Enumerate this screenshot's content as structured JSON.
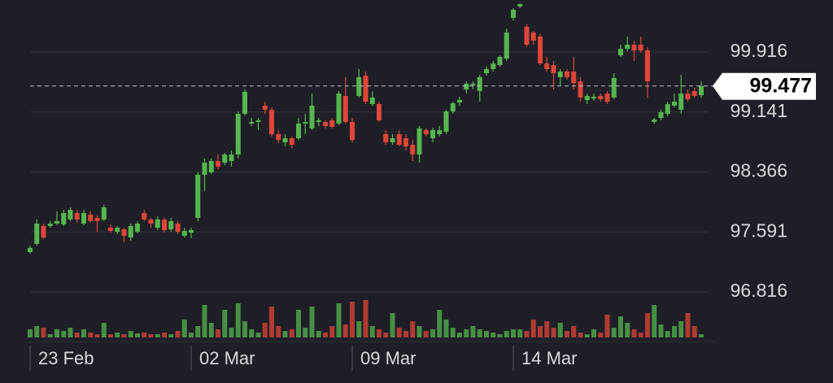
{
  "chart_data": {
    "type": "candlestick",
    "categories": [
      "23 Feb",
      null,
      null,
      null,
      null,
      null,
      null,
      null,
      null,
      null,
      null,
      null,
      null,
      null,
      null,
      null,
      null,
      null,
      null,
      null,
      null,
      null,
      null,
      null,
      "02 Mar",
      null,
      null,
      null,
      null,
      null,
      null,
      null,
      null,
      null,
      null,
      null,
      null,
      null,
      null,
      null,
      null,
      null,
      null,
      null,
      null,
      null,
      null,
      null,
      "09 Mar",
      null,
      null,
      null,
      null,
      null,
      null,
      null,
      null,
      null,
      null,
      null,
      null,
      null,
      null,
      null,
      null,
      null,
      null,
      null,
      null,
      null,
      null,
      null,
      "14 Mar",
      null,
      null,
      null,
      null,
      null,
      null,
      null,
      null,
      null,
      null,
      null,
      null,
      null,
      null,
      null,
      null,
      null,
      null,
      null,
      null,
      null,
      null,
      null,
      null,
      null,
      null,
      null,
      null
    ],
    "open": [
      97.331,
      97.436,
      97.668,
      97.668,
      97.699,
      97.689,
      97.752,
      97.836,
      97.699,
      97.815,
      97.773,
      97.752,
      97.646,
      97.594,
      97.625,
      97.52,
      97.594,
      97.836,
      97.752,
      97.646,
      97.752,
      97.625,
      97.699,
      97.541,
      97.583,
      97.773,
      98.33,
      98.361,
      98.508,
      98.487,
      98.508,
      98.592,
      99.118,
      98.992,
      99.013,
      99.223,
      99.17,
      98.855,
      98.75,
      98.802,
      98.802,
      98.992,
      98.929,
      99.013,
      99.013,
      99.034,
      98.992,
      99.349,
      99.013,
      99.349,
      99.612,
      99.244,
      99.244,
      98.855,
      98.75,
      98.855,
      98.802,
      98.718,
      98.592,
      98.908,
      98.802,
      98.855,
      98.887,
      99.149,
      99.265,
      99.433,
      99.486,
      99.412,
      99.643,
      99.696,
      99.748,
      99.832,
      100.358,
      100.505,
      100.242,
      100.169,
      100.116,
      99.769,
      99.748,
      99.591,
      99.664,
      99.664,
      99.538,
      99.296,
      99.317,
      99.349,
      99.38,
      99.328,
      99.874,
      99.958,
      100.011,
      100.011,
      99.937,
      99.013,
      99.065,
      99.118,
      99.223,
      99.17,
      99.38,
      99.412,
      99.359
    ],
    "high": [
      97.415,
      97.752,
      97.699,
      97.731,
      97.857,
      97.878,
      97.909,
      97.878,
      97.878,
      97.857,
      97.804,
      97.941,
      97.689,
      97.668,
      97.646,
      97.699,
      97.731,
      97.878,
      97.773,
      97.794,
      97.773,
      97.773,
      97.731,
      97.646,
      97.646,
      98.361,
      98.54,
      98.54,
      98.592,
      98.613,
      98.645,
      99.149,
      99.433,
      99.065,
      99.065,
      99.275,
      99.202,
      98.908,
      98.855,
      98.824,
      99.065,
      99.118,
      99.38,
      99.065,
      99.034,
      99.065,
      99.412,
      99.591,
      99.065,
      99.696,
      99.664,
      99.412,
      99.275,
      98.908,
      98.855,
      98.908,
      98.855,
      98.781,
      98.96,
      98.929,
      98.939,
      98.96,
      99.17,
      99.275,
      99.338,
      99.538,
      99.538,
      99.622,
      99.727,
      99.801,
      99.874,
      100.221,
      100.484,
      100.547,
      100.274,
      100.19,
      100.148,
      99.853,
      99.801,
      99.696,
      99.696,
      99.853,
      99.591,
      99.38,
      99.38,
      99.38,
      99.412,
      99.643,
      100.011,
      100.116,
      100.064,
      100.116,
      99.979,
      99.065,
      99.17,
      99.275,
      99.38,
      99.622,
      99.433,
      99.454,
      99.538
    ],
    "low": [
      97.31,
      97.415,
      97.499,
      97.646,
      97.678,
      97.668,
      97.731,
      97.71,
      97.678,
      97.71,
      97.594,
      97.731,
      97.583,
      97.563,
      97.457,
      97.478,
      97.573,
      97.731,
      97.646,
      97.615,
      97.583,
      97.594,
      97.563,
      97.52,
      97.51,
      97.731,
      98.119,
      98.34,
      98.403,
      98.456,
      98.435,
      98.54,
      99.097,
      98.96,
      98.908,
      99.118,
      98.824,
      98.739,
      98.697,
      98.676,
      98.781,
      98.855,
      98.908,
      98.96,
      98.929,
      98.929,
      98.971,
      98.992,
      98.75,
      99.328,
      99.244,
      99.223,
      99.013,
      98.718,
      98.718,
      98.697,
      98.645,
      98.508,
      98.487,
      98.824,
      98.75,
      98.824,
      98.855,
      99.118,
      99.223,
      99.38,
      99.433,
      99.275,
      99.612,
      99.664,
      99.727,
      99.801,
      100.326,
      100.484,
      99.979,
      100.011,
      99.748,
      99.664,
      99.433,
      99.486,
      99.559,
      99.433,
      99.275,
      99.244,
      99.286,
      99.275,
      99.244,
      99.307,
      99.853,
      99.927,
      99.801,
      99.906,
      99.328,
      98.992,
      99.034,
      99.086,
      99.202,
      99.118,
      99.275,
      99.328,
      99.328
    ],
    "close": [
      97.384,
      97.699,
      97.52,
      97.699,
      97.731,
      97.836,
      97.878,
      97.752,
      97.836,
      97.731,
      97.731,
      97.909,
      97.604,
      97.646,
      97.541,
      97.668,
      97.699,
      97.752,
      97.699,
      97.752,
      97.615,
      97.731,
      97.594,
      97.604,
      97.615,
      98.33,
      98.487,
      98.508,
      98.435,
      98.592,
      98.592,
      99.118,
      99.402,
      99.013,
      99.034,
      99.17,
      98.855,
      98.781,
      98.802,
      98.718,
      98.992,
      99.013,
      99.223,
      99.034,
      98.96,
      98.95,
      99.38,
      99.013,
      98.781,
      99.591,
      99.275,
      99.328,
      99.034,
      98.75,
      98.802,
      98.718,
      98.697,
      98.592,
      98.929,
      98.855,
      98.908,
      98.908,
      99.149,
      99.254,
      99.296,
      99.507,
      99.507,
      99.591,
      99.696,
      99.769,
      99.853,
      100.169,
      100.463,
      100.536,
      100.011,
      100.064,
      99.769,
      99.696,
      99.643,
      99.664,
      99.591,
      99.517,
      99.328,
      99.349,
      99.338,
      99.307,
      99.275,
      99.58,
      99.958,
      100.011,
      99.937,
      99.937,
      99.538,
      99.044,
      99.139,
      99.244,
      99.275,
      99.38,
      99.307,
      99.349,
      99.477
    ],
    "volume": [
      10,
      14,
      12,
      4,
      10,
      8,
      12,
      6,
      10,
      6,
      4,
      18,
      4,
      6,
      4,
      8,
      5,
      6,
      4,
      4,
      6,
      4,
      8,
      22,
      6,
      14,
      40,
      18,
      10,
      34,
      12,
      42,
      20,
      10,
      6,
      18,
      38,
      14,
      8,
      10,
      34,
      12,
      38,
      8,
      6,
      14,
      42,
      16,
      44,
      20,
      46,
      14,
      10,
      6,
      30,
      12,
      8,
      20,
      14,
      8,
      10,
      34,
      22,
      12,
      6,
      10,
      14,
      10,
      8,
      6,
      4,
      8,
      10,
      10,
      8,
      22,
      14,
      20,
      12,
      18,
      8,
      14,
      6,
      4,
      10,
      6,
      28,
      12,
      26,
      18,
      10,
      6,
      30,
      40,
      16,
      8,
      14,
      20,
      30,
      14,
      4
    ],
    "volume_lim": [
      0,
      50
    ],
    "current_price": 99.477,
    "ylim": [
      96.175,
      100.589
    ],
    "yticks": [
      96.816,
      97.591,
      98.366,
      99.141,
      99.916
    ],
    "grid": true,
    "up_color": "#56b64f",
    "down_color": "#e0453a"
  }
}
